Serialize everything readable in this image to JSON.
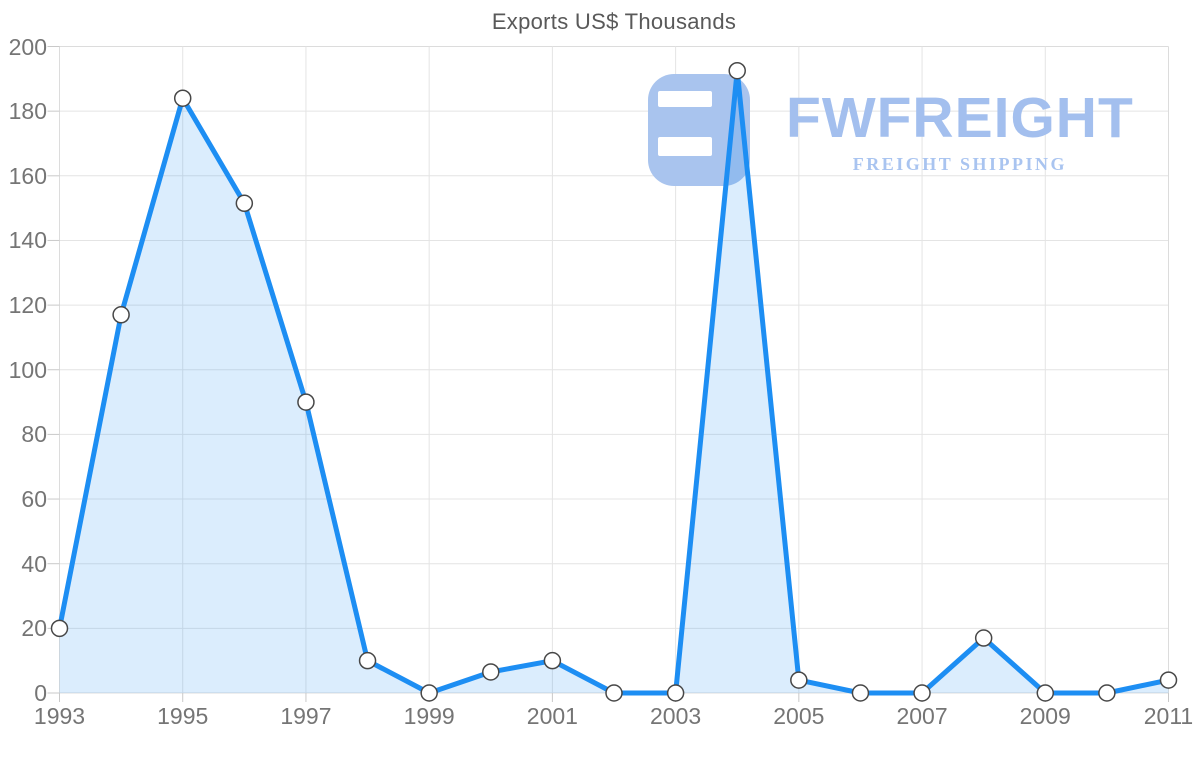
{
  "page": {
    "background": "#ffffff"
  },
  "chart_data": {
    "type": "area",
    "title": "Exports US$ Thousands",
    "categories": [
      1993,
      1994,
      1995,
      1996,
      1997,
      1998,
      1999,
      2000,
      2001,
      2002,
      2003,
      2004,
      2005,
      2006,
      2007,
      2008,
      2009,
      2010,
      2011
    ],
    "values": [
      20,
      117,
      184,
      151.5,
      90,
      10,
      0,
      6.5,
      10,
      0,
      0,
      192.5,
      4,
      0,
      0,
      17,
      0,
      0,
      4
    ],
    "x_tick_labels": [
      "1993",
      "1995",
      "1997",
      "1999",
      "2001",
      "2003",
      "2005",
      "2007",
      "2009",
      "2011"
    ],
    "y_tick_labels": [
      "0",
      "20",
      "40",
      "60",
      "80",
      "100",
      "120",
      "140",
      "160",
      "180",
      "200"
    ],
    "xlabel": "",
    "ylabel": "",
    "ylim": [
      0,
      200
    ],
    "y_tick_step": 20,
    "grid": true,
    "legend": false,
    "colors": {
      "line": "#1d8ef3",
      "fill": "rgba(30,140,245,0.16)",
      "marker_fill": "#ffffff",
      "marker_stroke": "#474747",
      "gridline": "#e4e4e4",
      "border": "#dcdcdc",
      "tick": "#c9c9c9",
      "axis_text": "#757575",
      "title_text": "#595959"
    }
  },
  "watermark": {
    "name": "FWFREIGHT",
    "tagline": "FREIGHT SHIPPING",
    "mark_color": "#a9c4ee"
  }
}
